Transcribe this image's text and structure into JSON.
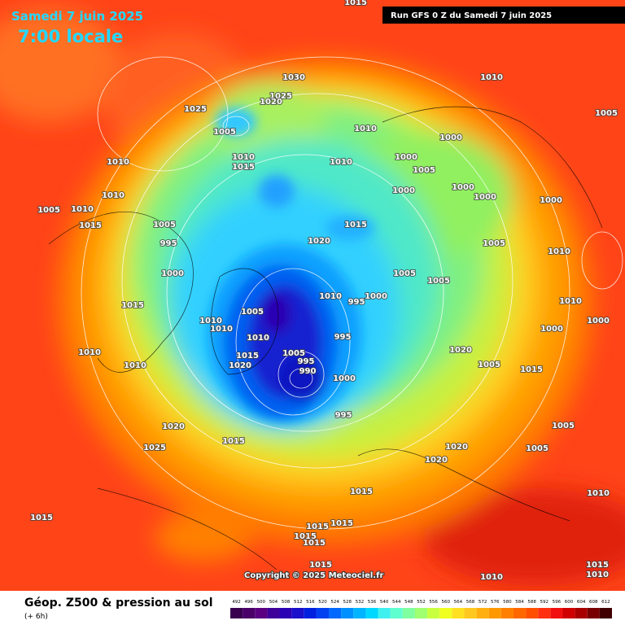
{
  "header": {
    "date": "Samedi 7 juin 2025",
    "time": "7:00 locale",
    "run": "Run GFS 0 Z du Samedi 7 juin 2025"
  },
  "legend": {
    "title": "Géop. Z500 & pression au sol",
    "step": "(+ 6h)",
    "scale": [
      492,
      496,
      500,
      504,
      508,
      512,
      516,
      520,
      524,
      528,
      532,
      536,
      540,
      544,
      548,
      552,
      556,
      560,
      564,
      568,
      572,
      576,
      580,
      584,
      588,
      592,
      596,
      600,
      604,
      608,
      612
    ],
    "colors": [
      "#3a0050",
      "#4b0069",
      "#5a0080",
      "#40009a",
      "#2a00b4",
      "#1a10cc",
      "#0020e0",
      "#0040f0",
      "#0068ff",
      "#0090ff",
      "#00b4ff",
      "#00d8ff",
      "#40f0f0",
      "#60ffd0",
      "#80ffa0",
      "#a0ff70",
      "#c8ff40",
      "#f0ff20",
      "#ffe020",
      "#ffc820",
      "#ffb010",
      "#ff9800",
      "#ff8000",
      "#ff6800",
      "#ff5000",
      "#ff3010",
      "#f01010",
      "#d00000",
      "#a80000",
      "#780000",
      "#400000"
    ]
  },
  "copyright": "Copyright © 2025 Meteociel.fr",
  "isobar_labels": [
    1015,
    1030,
    1025,
    1020,
    1025,
    1005,
    1010,
    1005,
    1010,
    1000,
    1000,
    1005,
    1010,
    1015,
    1010,
    1010,
    1000,
    1000,
    1000,
    1000,
    1010,
    1005,
    1010,
    1015,
    1005,
    1015,
    1020,
    995,
    1005,
    1010,
    1000,
    1005,
    1005,
    1010,
    995,
    1000,
    1015,
    1005,
    1010,
    1010,
    1010,
    1000,
    1000,
    1010,
    995,
    1020,
    1010,
    1015,
    1005,
    995,
    990,
    1020,
    1010,
    1005,
    1015,
    1000,
    995,
    1020,
    1015,
    1025,
    1020,
    1005,
    1005,
    1020,
    1015,
    1010,
    1015,
    1015,
    1015,
    1015,
    1015,
    1015,
    1010,
    1015,
    1010
  ]
}
